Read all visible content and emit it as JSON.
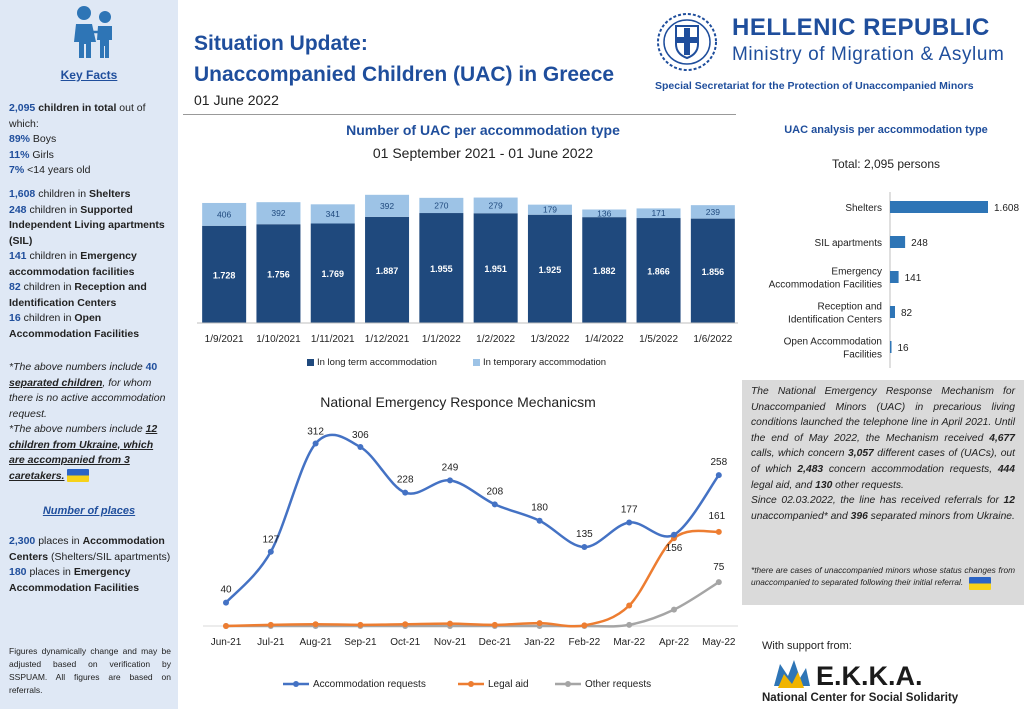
{
  "sidebar": {
    "key_facts": "Key Facts",
    "total_num": "2,095",
    "total_label": " children in total",
    "total_tail": " out of which:",
    "boys_pct": "89%",
    "boys_label": " Boys",
    "girls_pct": "11%",
    "girls_label": " Girls",
    "under14_pct": "7%",
    "under14_label": " <14 years old",
    "shelters_num": "1,608",
    "shelters_label": " children in ",
    "shelters_type": "Shelters",
    "sil_num": "248",
    "sil_label": " children in ",
    "sil_type": "Supported Independent Living apartments (SIL)",
    "emergency_num": "141",
    "emergency_label": " children in ",
    "emergency_type": "Emergency accommodation facilities",
    "ric_num": "82",
    "ric_label": " children in ",
    "ric_type": "Reception and Identification Centers",
    "open_num": "16",
    "open_label": " children in ",
    "open_type": "Open Accommodation Facilities",
    "note1_a": "*The above numbers include ",
    "note1_num": "40",
    "note1_b": "separated children",
    "note1_c": ", for whom there is no active accommodation request.",
    "note2_a": "*The above numbers include ",
    "note2_b": "12 children from Ukraine, which are accompanied from 3 caretakers.",
    "places_title": "Number of places",
    "places_centers_num": "2,300",
    "places_centers_a": " places in ",
    "places_centers_b": "Accommodation Centers",
    "places_centers_c": " (Shelters/SIL apartments)",
    "places_emerg_num": "180",
    "places_emerg_a": " places in ",
    "places_emerg_b": "Emergency Accommodation Facilities",
    "footer": "Figures dynamically change and may be adjusted based on verification by SSPUAM. All figures are based on referrals."
  },
  "header": {
    "title_line1": "Situation Update:",
    "title_line2": "Unaccompanied Children (UAC) in Greece",
    "date": "01 June 2022",
    "org_name": "HELLENIC REPUBLIC",
    "ministry": "Ministry of Migration & Asylum",
    "secretariat": "Special Secretariat for the Protection of Unaccompanied Minors"
  },
  "chart_data": [
    {
      "type": "bar",
      "title": "Number of UAC per accommodation type",
      "subtitle": "01 September 2021 - 01 June 2022",
      "stacked": true,
      "categories": [
        "1/9/2021",
        "1/10/2021",
        "1/11/2021",
        "1/12/2021",
        "1/1/2022",
        "1/2/2022",
        "1/3/2022",
        "1/4/2022",
        "1/5/2022",
        "1/6/2022"
      ],
      "series": [
        {
          "name": "In long term accommodation",
          "color": "#1f497d",
          "values": [
            1728,
            1756,
            1769,
            1887,
            1955,
            1951,
            1925,
            1882,
            1866,
            1856
          ],
          "labels": [
            "1.728",
            "1.756",
            "1.769",
            "1.887",
            "1.955",
            "1.951",
            "1.925",
            "1.882",
            "1.866",
            "1.856"
          ]
        },
        {
          "name": "In temporary accommodation",
          "color": "#9dc3e6",
          "values": [
            406,
            392,
            341,
            392,
            270,
            279,
            179,
            136,
            171,
            239
          ],
          "labels": [
            "406",
            "392",
            "341",
            "392",
            "270",
            "279",
            "179",
            "136",
            "171",
            "239"
          ]
        }
      ],
      "ylim": [
        0,
        2400
      ],
      "legend": "bottom"
    },
    {
      "type": "bar",
      "orientation": "horizontal",
      "title": "UAC analysis per accommodation type",
      "subtitle": "Total: 2,095 persons",
      "categories": [
        [
          "Shelters"
        ],
        [
          "SIL apartments"
        ],
        [
          "Emergency",
          "Accommodation Facilities"
        ],
        [
          "Reception and",
          "Identification Centers"
        ],
        [
          "Open Accommodation",
          "Facilities"
        ]
      ],
      "values": [
        1608,
        248,
        141,
        82,
        16
      ],
      "labels": [
        "1.608",
        "248",
        "141",
        "82",
        "16"
      ],
      "color": "#2e75b6",
      "xlim": [
        0,
        1608
      ]
    },
    {
      "type": "line",
      "title": "National Emergency Responce Mechanicsm",
      "categories": [
        "Jun-21",
        "Jul-21",
        "Aug-21",
        "Sep-21",
        "Oct-21",
        "Nov-21",
        "Dec-21",
        "Jan-22",
        "Feb-22",
        "Mar-22",
        "Apr-22",
        "May-22"
      ],
      "series": [
        {
          "name": "Accommodation requests",
          "color": "#4472c4",
          "values": [
            40,
            127,
            312,
            306,
            228,
            249,
            208,
            180,
            135,
            177,
            156,
            258
          ],
          "show_labels": true
        },
        {
          "name": "Legal aid",
          "color": "#ed7d31",
          "values": [
            0,
            2,
            3,
            2,
            3,
            4,
            2,
            5,
            1,
            35,
            150,
            161
          ],
          "label_last": "161"
        },
        {
          "name": "Other requests",
          "color": "#a5a5a5",
          "values": [
            0,
            0,
            0,
            0,
            0,
            0,
            0,
            0,
            0,
            2,
            28,
            75
          ],
          "label_last": "75"
        }
      ],
      "ylim": [
        0,
        330
      ],
      "legend": "bottom"
    }
  ],
  "textbox": {
    "p1": "The National Emergency Response Mechanism for Unaccompanied Minors (UAC) in precarious living conditions launched the telephone line in April 2021. Until the end of May 2022, the Mechanism received 4,677 calls, which concern 3,057 different cases of (UACs), out of which 2,483 concern accommodation requests, 444 legal aid, and 130 other requests.",
    "p2": "Since 02.03.2022, the line has received referrals for 12 unaccompanied* and 396 separated minors from Ukraine.",
    "note": "*there are cases of unaccompanied minors whose status changes from unaccompanied to separated following their initial referral.",
    "bold_terms": [
      "4,677",
      "3,057",
      "2,483",
      "444",
      "130",
      "12",
      "396"
    ]
  },
  "support": {
    "label": "With support from:",
    "logo_text": "E.K.K.A.",
    "org_name": "National Center for Social Solidarity"
  }
}
